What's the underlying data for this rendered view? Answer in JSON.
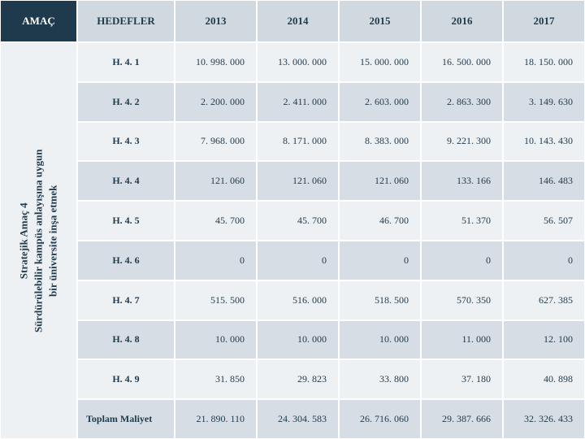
{
  "colors": {
    "dark": "#1f3a4d",
    "header_bg": "#d1d9e0",
    "row_a": "#eef1f4",
    "row_b": "#d7dde4",
    "border": "#ffffff",
    "text": "#1f3a4d"
  },
  "header": {
    "amac": "AMAÇ",
    "hedefler": "HEDEFLER",
    "y2013": "2013",
    "y2014": "2014",
    "y2015": "2015",
    "y2016": "2016",
    "y2017": "2017"
  },
  "sidebar": {
    "line1": "Stratejik Amaç 4",
    "line2": "Sürdürülebilir kampüs anlayışına uygun",
    "line3": "bir üniversite inşa etmek"
  },
  "rows": [
    {
      "target": "H. 4. 1",
      "v": [
        "10. 998. 000",
        "13. 000. 000",
        "15. 000. 000",
        "16. 500. 000",
        "18. 150. 000"
      ]
    },
    {
      "target": "H. 4. 2",
      "v": [
        "2. 200. 000",
        "2. 411. 000",
        "2. 603. 000",
        "2. 863. 300",
        "3. 149. 630"
      ]
    },
    {
      "target": "H. 4. 3",
      "v": [
        "7. 968. 000",
        "8. 171. 000",
        "8. 383. 000",
        "9. 221. 300",
        "10. 143. 430"
      ]
    },
    {
      "target": "H. 4. 4",
      "v": [
        "121. 060",
        "121. 060",
        "121. 060",
        "133. 166",
        "146. 483"
      ]
    },
    {
      "target": "H. 4. 5",
      "v": [
        "45. 700",
        "45. 700",
        "46. 700",
        "51. 370",
        "56. 507"
      ]
    },
    {
      "target": "H. 4. 6",
      "v": [
        "0",
        "0",
        "0",
        "0",
        "0"
      ]
    },
    {
      "target": "H. 4. 7",
      "v": [
        "515. 500",
        "516. 000",
        "518. 500",
        "570. 350",
        "627. 385"
      ]
    },
    {
      "target": "H. 4. 8",
      "v": [
        "10. 000",
        "10. 000",
        "10. 000",
        "11. 000",
        "12. 100"
      ]
    },
    {
      "target": "H. 4. 9",
      "v": [
        "31. 850",
        "29. 823",
        "33. 800",
        "37. 180",
        "40. 898"
      ]
    }
  ],
  "total": {
    "label": "Toplam Maliyet",
    "v": [
      "21. 890. 110",
      "24. 304. 583",
      "26. 716. 060",
      "29. 387. 666",
      "32. 326. 433"
    ]
  },
  "font": {
    "family": "Georgia",
    "header_size": 13,
    "cell_size": 12
  }
}
